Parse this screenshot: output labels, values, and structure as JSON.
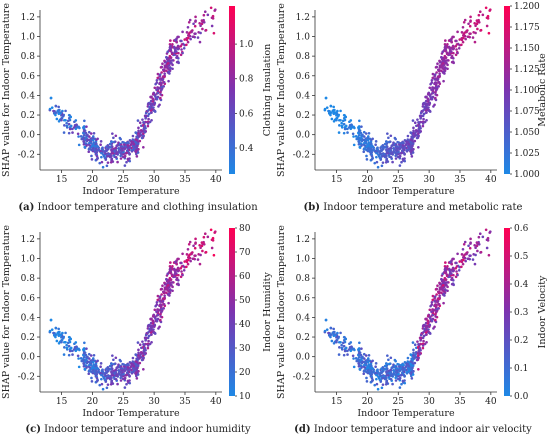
{
  "chart_data": [
    {
      "type": "scatter",
      "panel": "a",
      "caption_letter": "(a)",
      "caption_text": " Indoor temperature and clothing insulation",
      "xlabel": "Indoor Temperature",
      "ylabel": "SHAP value for Indoor Temperature",
      "xlim": [
        11.5,
        41
      ],
      "ylim": [
        -0.36,
        1.27
      ],
      "xticks": [
        "15",
        "20",
        "25",
        "30",
        "35",
        "40"
      ],
      "yticks": [
        "-0.2",
        "0.0",
        "0.2",
        "0.4",
        "0.6",
        "0.8",
        "1.0",
        "1.2"
      ],
      "colorbar": {
        "label": "Clothing Insulation",
        "min": 0.25,
        "max": 1.22,
        "ticks": [
          "0.4",
          "0.6",
          "0.8",
          "1.0"
        ],
        "low_color": "#1e88e5",
        "high_color": "#ff0052"
      },
      "color_relation": "shallow",
      "grid": false
    },
    {
      "type": "scatter",
      "panel": "b",
      "caption_letter": "(b)",
      "caption_text": " Indoor temperature and metabolic rate",
      "xlabel": "Indoor Temperature",
      "ylabel": "SHAP value for Indoor Temperature",
      "xlim": [
        11.5,
        41
      ],
      "ylim": [
        -0.36,
        1.27
      ],
      "xticks": [
        "15",
        "20",
        "25",
        "30",
        "35",
        "40"
      ],
      "yticks": [
        "-0.2",
        "0.0",
        "0.2",
        "0.4",
        "0.6",
        "0.8",
        "1.0",
        "1.2"
      ],
      "colorbar": {
        "label": "Metabolic Rate",
        "min": 1.0,
        "max": 1.2,
        "ticks": [
          "1.000",
          "1.025",
          "1.050",
          "1.075",
          "1.100",
          "1.125",
          "1.150",
          "1.175",
          "1.200"
        ],
        "low_color": "#1e88e5",
        "high_color": "#ff0052"
      },
      "color_relation": "strong",
      "grid": false
    },
    {
      "type": "scatter",
      "panel": "c",
      "caption_letter": "(c)",
      "caption_text": " Indoor temperature and indoor humidity",
      "xlabel": "Indoor Temperature",
      "ylabel": "SHAP value for Indoor Temperature",
      "xlim": [
        11.5,
        41
      ],
      "ylim": [
        -0.36,
        1.27
      ],
      "xticks": [
        "15",
        "20",
        "25",
        "30",
        "35",
        "40"
      ],
      "yticks": [
        "-0.2",
        "0.0",
        "0.2",
        "0.4",
        "0.6",
        "0.8",
        "1.0",
        "1.2"
      ],
      "colorbar": {
        "label": "Indoor Humidity",
        "min": 10,
        "max": 80,
        "ticks": [
          "10",
          "20",
          "30",
          "40",
          "50",
          "60",
          "70",
          "80"
        ],
        "low_color": "#1e88e5",
        "high_color": "#ff0052"
      },
      "color_relation": "medium",
      "grid": false
    },
    {
      "type": "scatter",
      "panel": "d",
      "caption_letter": "(d)",
      "caption_text": " Indoor temperature and indoor air velocity",
      "xlabel": "Indoor Temperature",
      "ylabel": "SHAP value for Indoor Temperature",
      "xlim": [
        11.5,
        41
      ],
      "ylim": [
        -0.36,
        1.27
      ],
      "xticks": [
        "15",
        "20",
        "25",
        "30",
        "35",
        "40"
      ],
      "yticks": [
        "-0.2",
        "0.0",
        "0.2",
        "0.4",
        "0.6",
        "0.8",
        "1.0",
        "1.2"
      ],
      "colorbar": {
        "label": "Indoor Velocity",
        "min": 0.0,
        "max": 0.6,
        "ticks": [
          "0.0",
          "0.1",
          "0.2",
          "0.3",
          "0.4",
          "0.5",
          "0.6"
        ],
        "low_color": "#1e88e5",
        "high_color": "#ff0052"
      },
      "color_relation": "weak",
      "grid": false
    }
  ],
  "shap_trend": {
    "x": [
      13,
      15,
      17,
      19,
      21,
      22,
      24,
      26,
      27,
      28,
      29,
      30,
      31,
      32,
      33,
      34,
      36,
      38,
      39
    ],
    "y": [
      0.3,
      0.18,
      0.1,
      -0.05,
      -0.17,
      -0.2,
      -0.15,
      -0.15,
      -0.1,
      0.05,
      0.22,
      0.35,
      0.5,
      0.68,
      0.82,
      0.9,
      1.05,
      1.14,
      1.17
    ]
  }
}
